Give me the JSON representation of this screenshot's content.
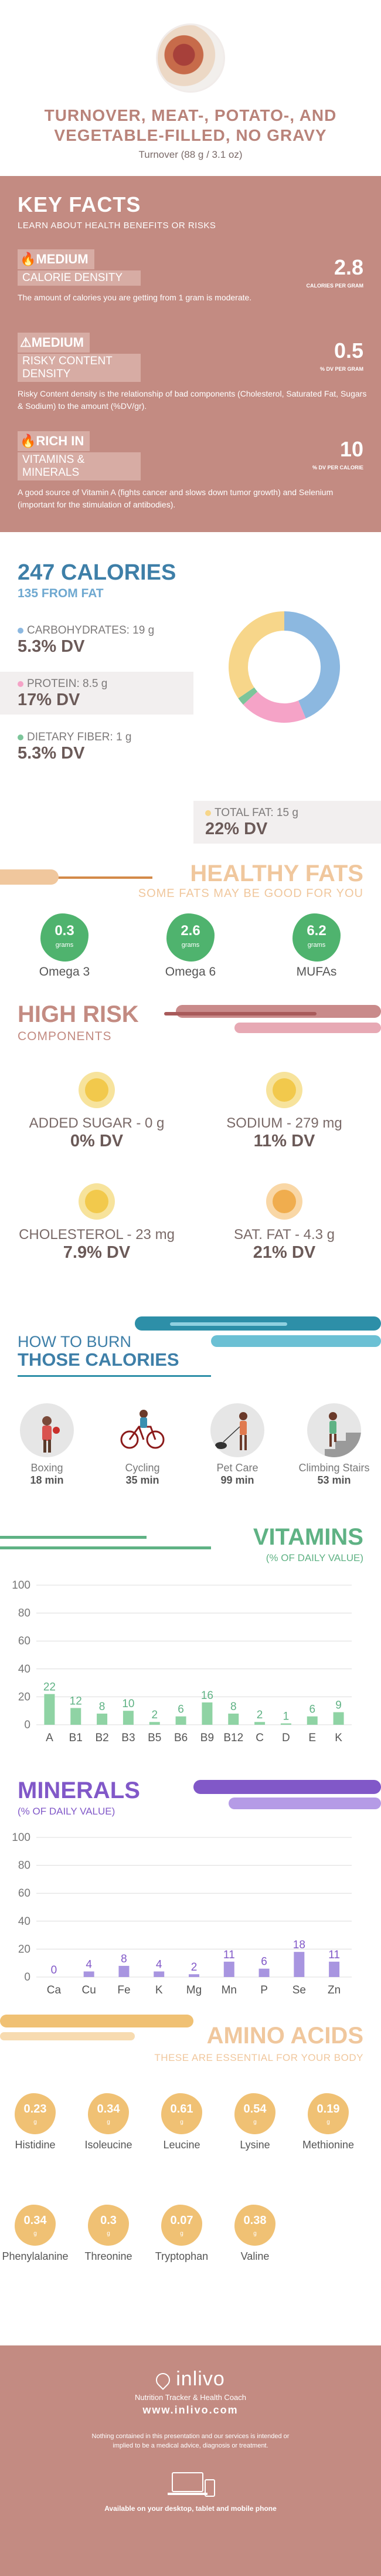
{
  "header": {
    "title": "TURNOVER, MEAT-, POTATO-, AND VEGETABLE-FILLED, NO GRAVY",
    "serving": "Turnover (88 g / 3.1 oz)"
  },
  "key_facts": {
    "title": "KEY FACTS",
    "subtitle": "LEARN ABOUT HEALTH BENEFITS OR RISKS",
    "facts": [
      {
        "level": "MEDIUM",
        "name": "CALORIE DENSITY",
        "value": "2.8",
        "unit": "CALORIES PER GRAM",
        "desc": "The amount of calories you are getting from 1 gram is moderate.",
        "icon": "flame-icon"
      },
      {
        "level": "MEDIUM",
        "name": "RISKY CONTENT DENSITY",
        "value": "0.5",
        "unit": "% DV PER GRAM",
        "desc": "Risky Content density is the relationship of bad components (Cholesterol, Saturated Fat, Sugars & Sodium) to the amount (%DV/gr).",
        "icon": "warning-icon"
      },
      {
        "level": "RICH  IN",
        "name": "VITAMINS & MINERALS",
        "value": "10",
        "unit": "% DV PER CALORIE",
        "desc": "A good source of Vitamin A (fights cancer and slows down tumor growth) and Selenium (important for the stimulation of antibodies).",
        "icon": "flame-icon"
      }
    ]
  },
  "calories": {
    "title": "247 CALORIES",
    "from_fat": "135 FROM FAT",
    "macros": [
      {
        "label": "CARBOHYDRATES: 19 g",
        "dv": "5.3% DV",
        "color": "#8cb8e0"
      },
      {
        "label": "PROTEIN: 8.5 g",
        "dv": "17% DV",
        "color": "#f5a3c7"
      },
      {
        "label": "DIETARY FIBER: 1 g",
        "dv": "5.3% DV",
        "color": "#7cc59a"
      },
      {
        "label": "TOTAL FAT: 15 g",
        "dv": "22% DV",
        "color": "#f7d68a"
      }
    ]
  },
  "healthy_fats": {
    "title": "HEALTHY FATS",
    "subtitle": "SOME FATS MAY BE GOOD FOR YOU",
    "items": [
      {
        "value": "0.3",
        "unit": "grams",
        "name": "Omega 3"
      },
      {
        "value": "2.6",
        "unit": "grams",
        "name": "Omega 6"
      },
      {
        "value": "6.2",
        "unit": "grams",
        "name": "MUFAs"
      }
    ]
  },
  "high_risk": {
    "title": "HIGH RISK",
    "subtitle": "COMPONENTS",
    "items": [
      {
        "label": "ADDED SUGAR - 0 g",
        "dv": "0% DV"
      },
      {
        "label": "SODIUM - 279 mg",
        "dv": "11% DV"
      },
      {
        "label": "CHOLESTEROL - 23 mg",
        "dv": "7.9% DV"
      },
      {
        "label": "SAT. FAT - 4.3 g",
        "dv": "21% DV"
      }
    ]
  },
  "burn": {
    "title_1": "HOW TO BURN",
    "title_2": "THOSE CALORIES",
    "activities": [
      {
        "name": "Boxing",
        "minutes": "18 min"
      },
      {
        "name": "Cycling",
        "minutes": "35 min"
      },
      {
        "name": "Pet Care",
        "minutes": "99 min"
      },
      {
        "name": "Climbing Stairs",
        "minutes": "53 min"
      }
    ]
  },
  "vitamins": {
    "title": "VITAMINS",
    "subtitle": "(% OF DAILY VALUE)",
    "chart_data": {
      "type": "bar",
      "categories": [
        "A",
        "B1",
        "B2",
        "B3",
        "B5",
        "B6",
        "B9",
        "B12",
        "C",
        "D",
        "E",
        "K"
      ],
      "values": [
        22,
        12,
        8,
        10,
        2,
        6,
        16,
        8,
        2,
        1,
        6,
        9
      ],
      "ylim": [
        0,
        100
      ],
      "yticks": [
        0,
        20,
        40,
        60,
        80,
        100
      ],
      "color": "#8fd3a4",
      "label_color": "#5fb284"
    }
  },
  "minerals": {
    "title": "MINERALS",
    "subtitle": "(% OF DAILY VALUE)",
    "chart_data": {
      "type": "bar",
      "categories": [
        "Ca",
        "Cu",
        "Fe",
        "K",
        "Mg",
        "Mn",
        "P",
        "Se",
        "Zn"
      ],
      "values": [
        0,
        4,
        8,
        4,
        2,
        11,
        6,
        18,
        11
      ],
      "ylim": [
        0,
        100
      ],
      "yticks": [
        0,
        20,
        40,
        60,
        80,
        100
      ],
      "color": "#a895e0",
      "label_color": "#8158c8"
    }
  },
  "amino_acids": {
    "title": "AMINO ACIDS",
    "subtitle": "THESE ARE ESSENTIAL FOR YOUR BODY",
    "unit": "g",
    "items": [
      {
        "value": "0.23",
        "name": "Histidine"
      },
      {
        "value": "0.34",
        "name": "Isoleucine"
      },
      {
        "value": "0.61",
        "name": "Leucine"
      },
      {
        "value": "0.54",
        "name": "Lysine"
      },
      {
        "value": "0.19",
        "name": "Methionine"
      },
      {
        "value": "0.34",
        "name": "Phenylalanine"
      },
      {
        "value": "0.3",
        "name": "Threonine"
      },
      {
        "value": "0.07",
        "name": "Tryptophan"
      },
      {
        "value": "0.38",
        "name": "Valine"
      }
    ]
  },
  "footer": {
    "brand": "inlivo",
    "tagline": "Nutrition Tracker & Health Coach",
    "url": "www.inlivo.com",
    "disclaimer": "Nothing contained in this presentation and our services is intended or implied to be a medical advice, diagnosis or treatment.",
    "available": "Available on your desktop, tablet and mobile phone"
  }
}
